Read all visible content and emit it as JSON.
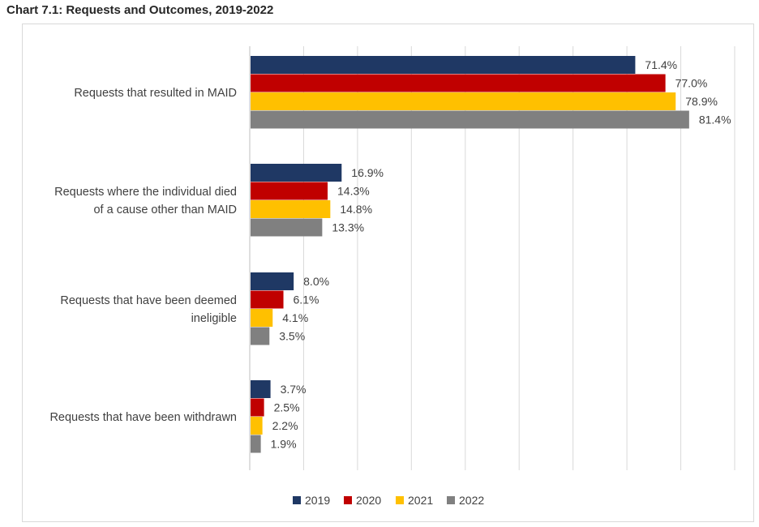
{
  "title": "Chart 7.1: Requests and Outcomes, 2019-2022",
  "chart_data": {
    "type": "bar",
    "orientation": "horizontal",
    "title": "Chart 7.1: Requests and Outcomes, 2019-2022",
    "categories": [
      [
        "Requests that resulted in MAID"
      ],
      [
        "Requests where the individual died",
        "of a cause other than MAID"
      ],
      [
        "Requests that have been deemed",
        "ineligible"
      ],
      [
        "Requests that have been withdrawn"
      ]
    ],
    "series": [
      {
        "name": "2019",
        "color": "#1f3864",
        "values": [
          71.4,
          16.9,
          8.0,
          3.7
        ],
        "labels": [
          "71.4%",
          "16.9%",
          "8.0%",
          "3.7%"
        ]
      },
      {
        "name": "2020",
        "color": "#c00000",
        "values": [
          77.0,
          14.3,
          6.1,
          2.5
        ],
        "labels": [
          "77.0%",
          "14.3%",
          "6.1%",
          "2.5%"
        ]
      },
      {
        "name": "2021",
        "color": "#ffc000",
        "values": [
          78.9,
          14.8,
          4.1,
          2.2
        ],
        "labels": [
          "78.9%",
          "14.8%",
          "4.1%",
          "2.2%"
        ]
      },
      {
        "name": "2022",
        "color": "#808080",
        "values": [
          81.4,
          13.3,
          3.5,
          1.9
        ],
        "labels": [
          "81.4%",
          "13.3%",
          "3.5%",
          "1.9%"
        ]
      }
    ],
    "xlim": [
      0,
      90
    ],
    "x_gridlines": true,
    "legend": "bottom",
    "xlabel": "",
    "ylabel": ""
  }
}
